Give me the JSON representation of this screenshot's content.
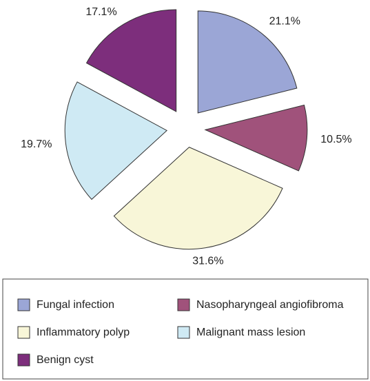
{
  "chart_data": {
    "type": "pie",
    "categories": [
      "Fungal infection",
      "Nasopharyngeal angiofibroma",
      "Inflammatory polyp",
      "Malignant mass lesion",
      "Benign cyst"
    ],
    "values": [
      21.1,
      10.5,
      31.6,
      19.7,
      17.1
    ],
    "value_labels": [
      "21.1%",
      "10.5%",
      "31.6%",
      "19.7%",
      "17.1%"
    ],
    "colors": [
      "#9ba6d6",
      "#a0527b",
      "#f8f6d8",
      "#cfeaf4",
      "#7d2e7c"
    ],
    "legend": "bottom"
  }
}
